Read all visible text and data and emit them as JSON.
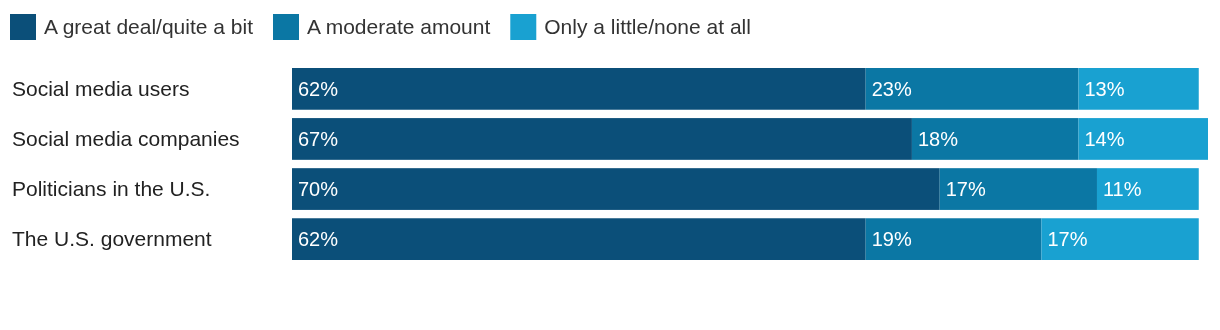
{
  "chart_data": {
    "type": "bar",
    "orientation": "horizontal",
    "stacked": true,
    "legend": "top left",
    "categories": [
      "Social media users",
      "Social media companies",
      "Politicians in the U.S.",
      "The U.S. government"
    ],
    "series": [
      {
        "name": "A great deal/quite a bit",
        "color": "#0b4f79",
        "values": [
          62,
          67,
          70,
          62
        ],
        "value_labels": [
          "62%",
          "67%",
          "70%",
          "62%"
        ]
      },
      {
        "name": "A moderate amount",
        "color": "#0b77a4",
        "values": [
          23,
          18,
          17,
          19
        ],
        "value_labels": [
          "23%",
          "18%",
          "17%",
          "19%"
        ]
      },
      {
        "name": "Only a little/none at all",
        "color": "#19a1d1",
        "values": [
          13,
          14,
          11,
          17
        ],
        "value_labels": [
          "13%",
          "14%",
          "11%",
          "17%"
        ]
      }
    ]
  }
}
